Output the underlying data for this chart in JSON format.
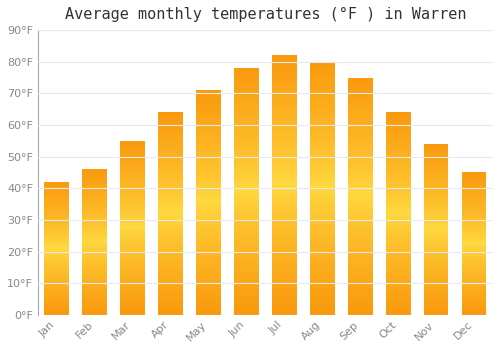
{
  "title": "Average monthly temperatures (°F ) in Warren",
  "months": [
    "Jan",
    "Feb",
    "Mar",
    "Apr",
    "May",
    "Jun",
    "Jul",
    "Aug",
    "Sep",
    "Oct",
    "Nov",
    "Dec"
  ],
  "values": [
    42,
    46,
    55,
    64,
    71,
    78,
    82,
    80,
    75,
    64,
    54,
    45
  ],
  "bar_color_main": "#FFA500",
  "bar_color_bright": "#FFD050",
  "ylim": [
    0,
    90
  ],
  "yticks": [
    0,
    10,
    20,
    30,
    40,
    50,
    60,
    70,
    80,
    90
  ],
  "ytick_labels": [
    "0°F",
    "10°F",
    "20°F",
    "30°F",
    "40°F",
    "50°F",
    "60°F",
    "70°F",
    "80°F",
    "90°F"
  ],
  "background_color": "#FFFFFF",
  "grid_color": "#E8E8F0",
  "title_fontsize": 11,
  "tick_fontsize": 8,
  "tick_color": "#888888"
}
